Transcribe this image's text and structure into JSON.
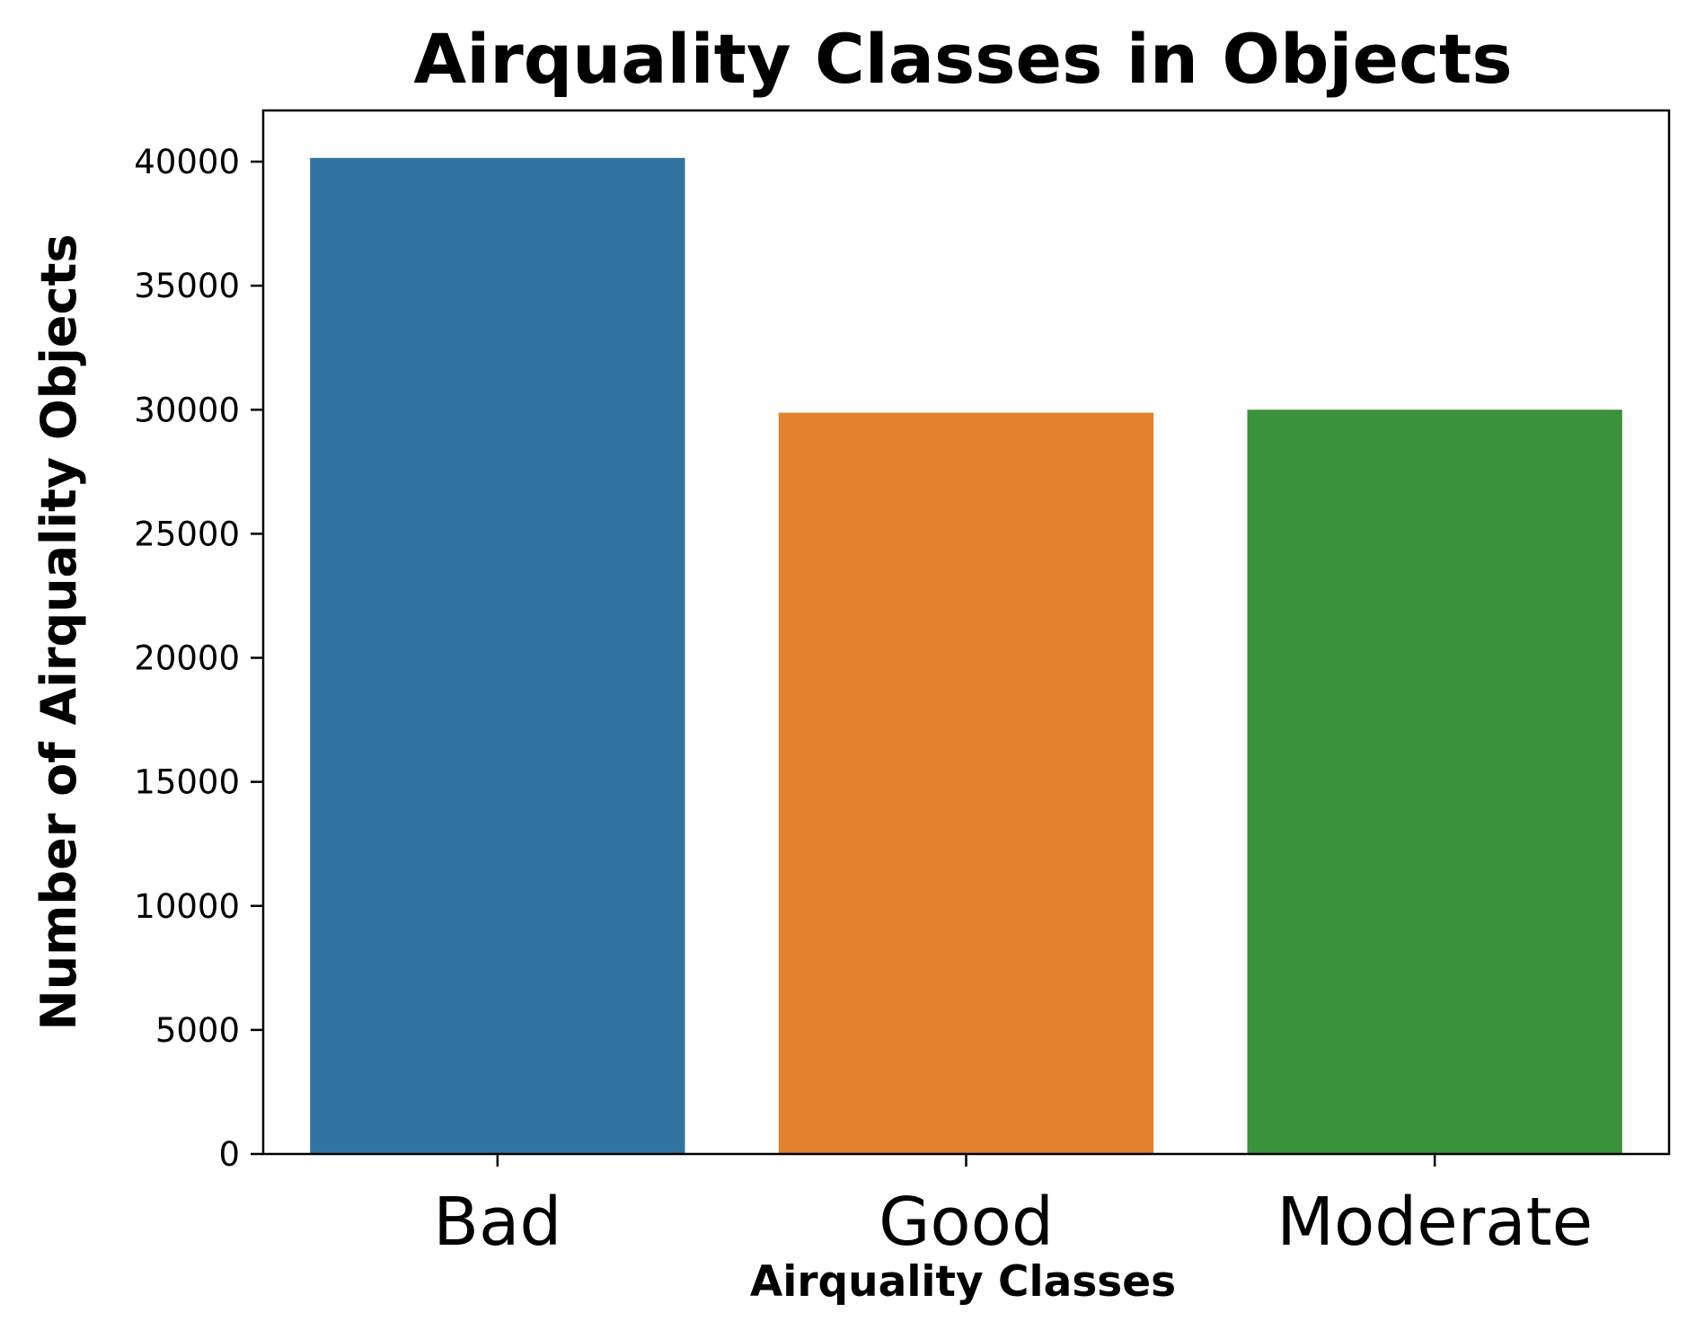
{
  "chart_data": {
    "type": "bar",
    "title": "Airquality Classes in Objects",
    "xlabel": "Airquality Classes",
    "ylabel": "Number of Airquality Objects",
    "categories": [
      "Bad",
      "Good",
      "Moderate"
    ],
    "values": [
      40150,
      29880,
      30000
    ],
    "colors": [
      "#3274a1",
      "#e1812c",
      "#3a923a"
    ],
    "ylim": [
      0,
      42000
    ],
    "yticks": [
      0,
      5000,
      10000,
      15000,
      20000,
      25000,
      30000,
      35000,
      40000
    ],
    "grid": false,
    "legend": "none"
  }
}
